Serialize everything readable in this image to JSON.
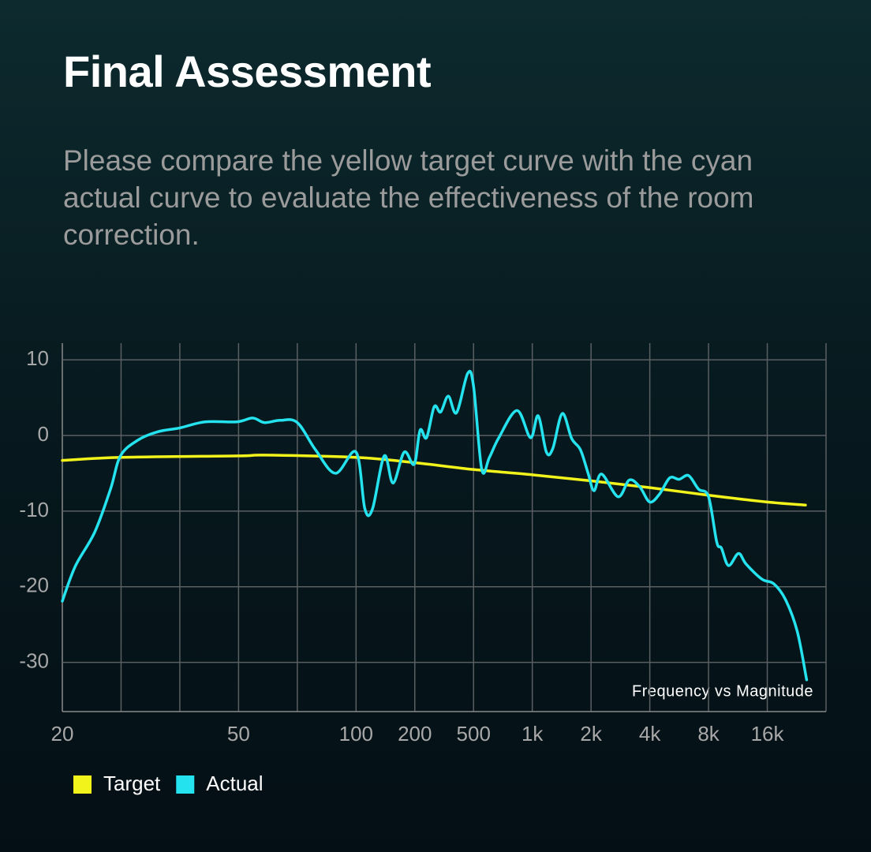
{
  "chart_data": {
    "type": "line",
    "title": "Final Assessment",
    "subtitle": "Please compare the yellow target curve with the cyan actual curve to evaluate the effectiveness of the room correction.",
    "annotation": "Frequency vs Magnitude",
    "xlim": [
      0,
      13
    ],
    "ylim": [
      -36.5,
      12.2
    ],
    "xticks": [
      {
        "value": 0,
        "label": "20"
      },
      {
        "value": 3,
        "label": "50"
      },
      {
        "value": 5,
        "label": "100"
      },
      {
        "value": 6,
        "label": "200"
      },
      {
        "value": 7,
        "label": "500"
      },
      {
        "value": 8,
        "label": "1k"
      },
      {
        "value": 9,
        "label": "2k"
      },
      {
        "value": 10,
        "label": "4k"
      },
      {
        "value": 11,
        "label": "8k"
      },
      {
        "value": 12,
        "label": "16k"
      }
    ],
    "xgrid": [
      0,
      1,
      2,
      3,
      4,
      5,
      6,
      7,
      8,
      9,
      10,
      11,
      12,
      13
    ],
    "yticks": [
      10,
      0,
      -10,
      -20,
      -30
    ],
    "grid": true,
    "series": [
      {
        "name": "Target",
        "color": "#f3f31c",
        "x": [
          0,
          1,
          3,
          3.44,
          5,
          6,
          7,
          8,
          9,
          10,
          11,
          12,
          12.65
        ],
        "values": [
          -3.3,
          -2.9,
          -2.7,
          -2.6,
          -2.9,
          -3.6,
          -4.5,
          -5.2,
          -6.0,
          -6.9,
          -7.9,
          -8.8,
          -9.2
        ]
      },
      {
        "name": "Actual",
        "color": "#25e3ee",
        "x": [
          0,
          0.22,
          0.55,
          0.82,
          0.99,
          1.29,
          1.63,
          2.0,
          2.43,
          2.97,
          3.24,
          3.44,
          3.71,
          4.0,
          4.31,
          4.65,
          5.0,
          5.15,
          5.28,
          5.48,
          5.63,
          5.82,
          5.99,
          6.09,
          6.2,
          6.33,
          6.44,
          6.57,
          6.71,
          6.9,
          7.0,
          7.14,
          7.27,
          7.43,
          7.74,
          7.97,
          8.1,
          8.24,
          8.35,
          8.51,
          8.67,
          8.82,
          8.95,
          9.05,
          9.18,
          9.46,
          9.65,
          9.83,
          10.0,
          10.17,
          10.34,
          10.5,
          10.66,
          10.83,
          11.0,
          11.14,
          11.22,
          11.34,
          11.51,
          11.64,
          11.91,
          12.11,
          12.31,
          12.51,
          12.67
        ],
        "values": [
          -21.9,
          -17.3,
          -12.8,
          -7.1,
          -2.7,
          -0.6,
          0.5,
          1.0,
          1.8,
          1.8,
          2.3,
          1.7,
          2.0,
          1.7,
          -1.9,
          -5.0,
          -2.2,
          -9.7,
          -9.7,
          -2.7,
          -6.3,
          -2.2,
          -3.8,
          0.7,
          -0.3,
          3.8,
          3.1,
          5.2,
          3.0,
          8.2,
          6.5,
          -4.5,
          -2.9,
          -0.3,
          3.3,
          -0.3,
          2.6,
          -2.2,
          -1.7,
          2.9,
          -0.4,
          -1.9,
          -5.0,
          -7.3,
          -5.1,
          -8.1,
          -5.9,
          -6.8,
          -8.8,
          -7.7,
          -5.6,
          -5.8,
          -5.3,
          -7.1,
          -8.1,
          -14.1,
          -14.9,
          -17.2,
          -15.6,
          -17.0,
          -19.0,
          -19.6,
          -21.7,
          -25.9,
          -32.3
        ]
      }
    ]
  }
}
